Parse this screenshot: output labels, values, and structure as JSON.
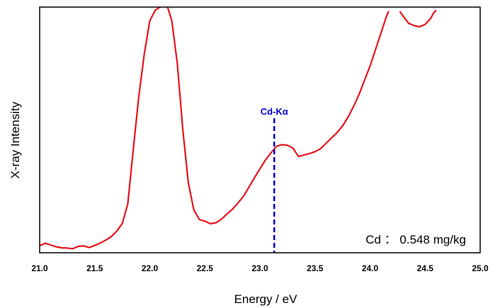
{
  "chart_data": {
    "type": "line",
    "xlabel": "Energy / eV",
    "ylabel": "X-ray Intensity",
    "xlim": [
      21.0,
      25.0
    ],
    "ylim": [
      0,
      100
    ],
    "x_ticks": [
      "21.0",
      "21.5",
      "22.0",
      "22.5",
      "23.0",
      "23.5",
      "24.0",
      "24.5",
      "25.0"
    ],
    "grid": false,
    "y_tick_labels_shown": false,
    "series": [
      {
        "color": "#e8141c",
        "x": [
          21.0,
          21.05,
          21.1,
          21.15,
          21.2,
          21.25,
          21.3,
          21.35,
          21.4,
          21.45,
          21.5,
          21.55,
          21.6,
          21.65,
          21.7,
          21.75,
          21.8,
          21.85,
          21.9,
          21.95,
          22.0,
          22.05,
          22.1,
          22.13,
          22.16,
          22.2,
          22.25,
          22.3,
          22.35,
          22.4,
          22.45,
          22.5,
          22.55,
          22.6,
          22.65,
          22.7,
          22.75,
          22.8,
          22.85,
          22.9,
          22.95,
          23.0,
          23.05,
          23.1,
          23.15,
          23.2,
          23.25,
          23.3,
          23.35,
          23.4,
          23.45,
          23.5,
          23.55,
          23.6,
          23.65,
          23.7,
          23.75,
          23.8,
          23.85,
          23.9,
          23.95,
          24.0,
          24.05,
          24.1,
          24.15,
          24.17
        ],
        "y": [
          1.5,
          2.5,
          1.8,
          1.0,
          0.6,
          0.5,
          0.2,
          1.2,
          1.4,
          0.7,
          1.6,
          2.6,
          3.8,
          5.3,
          7.6,
          10.8,
          19.0,
          42.0,
          64.0,
          82.0,
          96.0,
          100.5,
          102.0,
          102.5,
          102.0,
          96.0,
          78.0,
          50.0,
          28.0,
          16.5,
          12.5,
          11.8,
          10.7,
          11.1,
          12.6,
          14.8,
          16.8,
          19.4,
          22.2,
          26.0,
          30.0,
          33.8,
          37.5,
          40.5,
          43.2,
          44.0,
          43.7,
          42.5,
          39.0,
          39.6,
          40.2,
          41.0,
          42.2,
          44.5,
          46.8,
          49.0,
          51.8,
          55.5,
          60.0,
          65.0,
          71.0,
          77.0,
          84.0,
          91.0,
          98.0,
          100.0
        ]
      },
      {
        "color": "#e8141c",
        "x": [
          24.27,
          24.3,
          24.35,
          24.4,
          24.45,
          24.5,
          24.55,
          24.58,
          24.6
        ],
        "y": [
          100.0,
          98.0,
          95.0,
          94.0,
          93.5,
          94.5,
          97.0,
          99.5,
          100.5
        ]
      }
    ],
    "marker": {
      "x": 23.13,
      "label": "Cd-Kα",
      "color": "#0000cc"
    },
    "annotation": "Cd ： 0.548 mg/kg"
  }
}
